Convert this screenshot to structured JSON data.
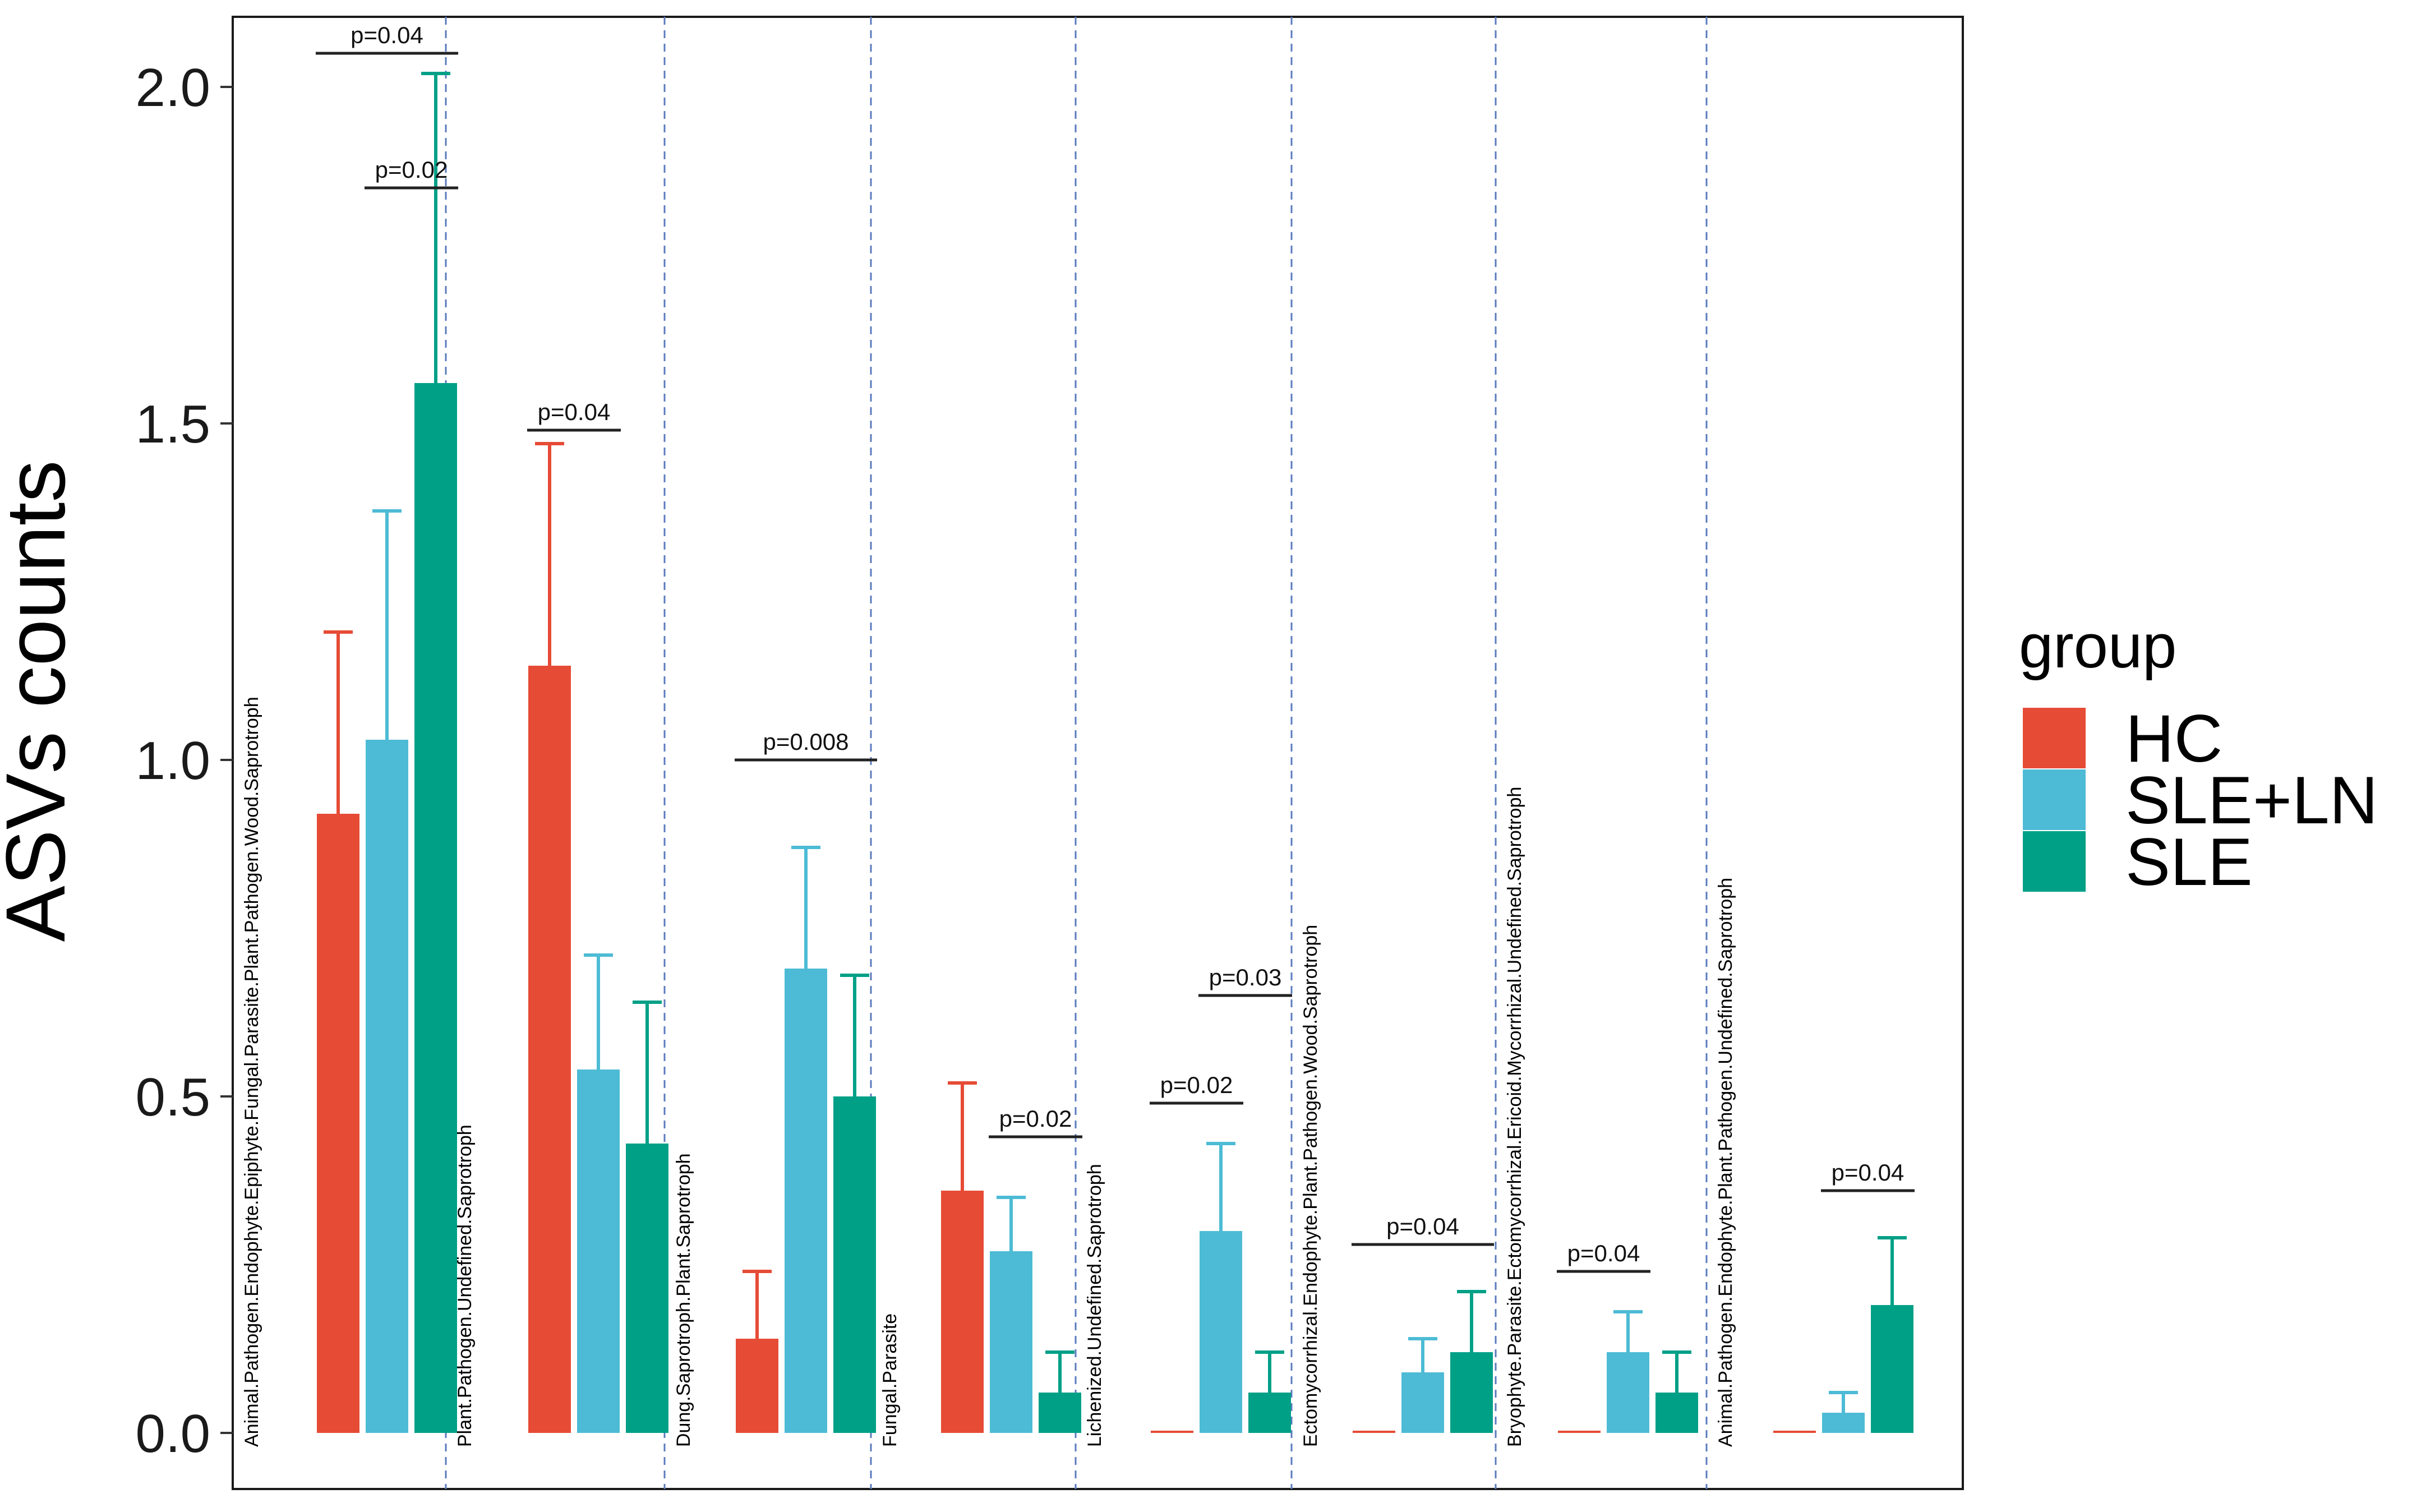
{
  "chart_data": {
    "type": "bar",
    "title": "",
    "xlabel": "",
    "ylabel": "ASVs counts",
    "ylim": [
      -0.1,
      2.1
    ],
    "yticks": [
      "0.0",
      "0.5",
      "1.0",
      "1.5",
      "2.0"
    ],
    "grid": false,
    "legend": {
      "title": "group",
      "position": "right",
      "entries": [
        "HC",
        "SLE+LN",
        "SLE"
      ]
    },
    "colors": {
      "HC": "#E64B35",
      "SLE+LN": "#4DBBD5",
      "SLE": "#00A087"
    },
    "categories": [
      "Animal.Pathogen.Endophyte.Epiphyte.Fungal.Parasite.Plant.Pathogen.Wood.Saprotroph",
      "Plant.Pathogen.Undefined.Saprotroph",
      "Dung.Saprotroph.Plant.Saprotroph",
      "Fungal.Parasite",
      "Lichenized.Undefined.Saprotroph",
      "Ectomycorrhizal.Endophyte.Plant.Pathogen.Wood.Saprotroph",
      "Bryophyte.Parasite.Ectomycorrhizal.Ericoid.Mycorrhizal.Undefined.Saprotroph",
      "Animal.Pathogen.Endophyte.Plant.Pathogen.Undefined.Saprotroph"
    ],
    "series": [
      {
        "name": "HC",
        "values": [
          0.92,
          1.14,
          0.14,
          0.36,
          0.0,
          0.0,
          0.0,
          0.0
        ],
        "err_upper": [
          1.19,
          1.47,
          0.24,
          0.52,
          0.0,
          0.0,
          0.0,
          0.0
        ]
      },
      {
        "name": "SLE+LN",
        "values": [
          1.03,
          0.54,
          0.69,
          0.27,
          0.3,
          0.09,
          0.12,
          0.03
        ],
        "err_upper": [
          1.37,
          0.71,
          0.87,
          0.35,
          0.43,
          0.14,
          0.18,
          0.06
        ]
      },
      {
        "name": "SLE",
        "values": [
          1.56,
          0.43,
          0.5,
          0.06,
          0.06,
          0.12,
          0.06,
          0.19
        ],
        "err_upper": [
          2.02,
          0.64,
          0.68,
          0.12,
          0.12,
          0.21,
          0.12,
          0.29
        ]
      }
    ],
    "annotations": [
      {
        "category": 0,
        "from": 0,
        "to": 2,
        "y": 2.05,
        "text": "p=0.04"
      },
      {
        "category": 0,
        "from": 1,
        "to": 2,
        "y": 1.85,
        "text": "p=0.02"
      },
      {
        "category": 1,
        "from": 0,
        "to": 1,
        "y": 1.49,
        "text": "p=0.04"
      },
      {
        "category": 2,
        "from": 0,
        "to": 2,
        "y": 1.0,
        "text": "p=0.008"
      },
      {
        "category": 3,
        "from": 1,
        "to": 2,
        "y": 0.44,
        "text": "p=0.02"
      },
      {
        "category": 4,
        "from": 0,
        "to": 1,
        "y": 0.49,
        "text": "p=0.02"
      },
      {
        "category": 4,
        "from": 1,
        "to": 2,
        "y": 0.65,
        "text": "p=0.03"
      },
      {
        "category": 5,
        "from": 0,
        "to": 2,
        "y": 0.28,
        "text": "p=0.04"
      },
      {
        "category": 6,
        "from": 0,
        "to": 1,
        "y": 0.24,
        "text": "p=0.04"
      },
      {
        "category": 7,
        "from": 1,
        "to": 2,
        "y": 0.36,
        "text": "p=0.04"
      }
    ]
  }
}
